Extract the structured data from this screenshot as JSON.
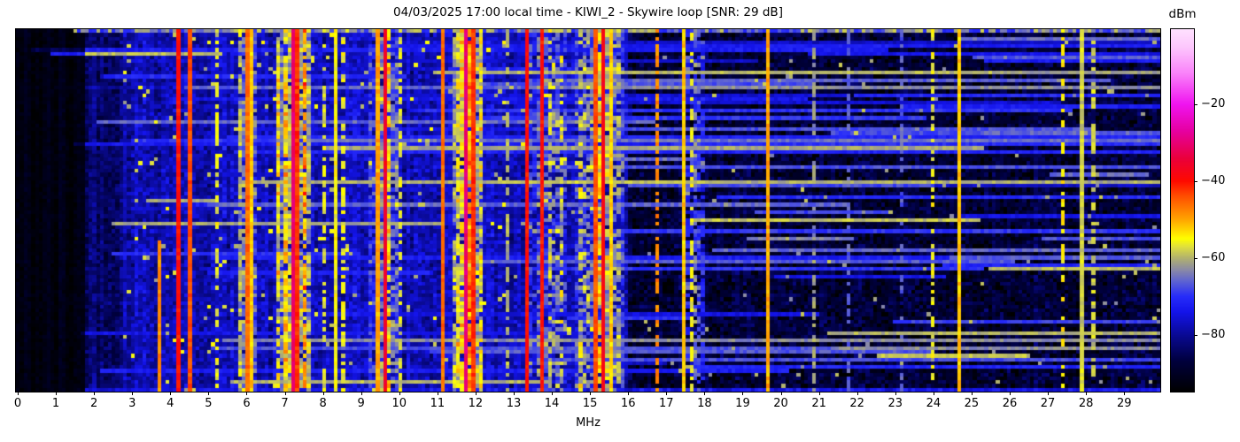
{
  "header": {
    "title": "04/03/2025 17:00 local time - KIWI_2 - Skywire loop [SNR: 29 dB]"
  },
  "chart_data": {
    "type": "heatmap",
    "title": "04/03/2025 17:00 local time - KIWI_2 - Skywire loop [SNR: 29 dB]",
    "xlabel": "MHz",
    "colorbar_label": "dBm",
    "x_range_mhz": [
      0,
      29.9
    ],
    "x_ticks": [
      0,
      1,
      2,
      3,
      4,
      5,
      6,
      7,
      8,
      9,
      10,
      11,
      12,
      13,
      14,
      15,
      16,
      17,
      18,
      19,
      20,
      21,
      22,
      23,
      24,
      25,
      26,
      27,
      28,
      29
    ],
    "colorbar_ticks": [
      -20,
      -40,
      -60,
      -80
    ],
    "colorbar_tick_labels": [
      "−20",
      "−40",
      "−60",
      "−80"
    ],
    "value_range_dbm": [
      -95,
      0
    ],
    "rows": 96,
    "cols": 299,
    "grid": false,
    "colormap_stops": [
      [
        -95,
        0,
        0,
        0
      ],
      [
        -87,
        0,
        0,
        60
      ],
      [
        -80,
        10,
        10,
        150
      ],
      [
        -74,
        20,
        20,
        235
      ],
      [
        -70,
        40,
        45,
        250
      ],
      [
        -66,
        95,
        100,
        210
      ],
      [
        -63,
        140,
        140,
        165
      ],
      [
        -60,
        178,
        178,
        110
      ],
      [
        -57,
        225,
        225,
        60
      ],
      [
        -55,
        255,
        255,
        0
      ],
      [
        -50,
        255,
        165,
        0
      ],
      [
        -44,
        255,
        80,
        0
      ],
      [
        -40,
        255,
        10,
        0
      ],
      [
        -34,
        235,
        0,
        60
      ],
      [
        -27,
        230,
        0,
        160
      ],
      [
        -20,
        240,
        20,
        240
      ],
      [
        -12,
        250,
        130,
        250
      ],
      [
        -5,
        253,
        200,
        253
      ],
      [
        0,
        255,
        228,
        255
      ]
    ],
    "background_profile_dbm": [
      [
        0.0,
        1.8,
        -93
      ],
      [
        1.8,
        2.8,
        -83
      ],
      [
        2.8,
        16.0,
        -78
      ],
      [
        16.0,
        29.9,
        -87
      ]
    ],
    "broadcast_bands": [
      {
        "f0": 5.75,
        "f1": 6.3,
        "level": -60,
        "var": 7,
        "stripe": 6,
        "gap": 0.15
      },
      {
        "f0": 6.85,
        "f1": 7.65,
        "level": -56,
        "var": 8,
        "stripe": 7,
        "gap": 0.12
      },
      {
        "f0": 9.25,
        "f1": 10.0,
        "level": -60,
        "var": 8,
        "stripe": 7,
        "gap": 0.2
      },
      {
        "f0": 11.45,
        "f1": 12.2,
        "level": -54,
        "var": 8,
        "stripe": 7,
        "gap": 0.12
      },
      {
        "f0": 13.45,
        "f1": 13.85,
        "level": -62,
        "var": 8,
        "stripe": 6,
        "gap": 0.3
      },
      {
        "f0": 13.9,
        "f1": 14.35,
        "level": -60,
        "var": 9,
        "stripe": 7,
        "gap": 0.35
      },
      {
        "f0": 14.55,
        "f1": 15.05,
        "level": -62,
        "var": 8,
        "stripe": 6,
        "gap": 0.3
      },
      {
        "f0": 15.05,
        "f1": 15.5,
        "level": -55,
        "var": 8,
        "stripe": 6,
        "gap": 0.15
      },
      {
        "f0": 15.5,
        "f1": 15.85,
        "level": -60,
        "var": 7,
        "stripe": 6,
        "gap": 0.3
      },
      {
        "f0": 17.4,
        "f1": 17.95,
        "level": -70,
        "var": 8,
        "stripe": 6,
        "gap": 0.4
      }
    ],
    "carrier_lines": [
      {
        "f": 3.75,
        "level": -48,
        "dash": 0,
        "r0": 0.58,
        "r1": 1.0
      },
      {
        "f": 4.2,
        "level": -40,
        "dash": 0
      },
      {
        "f": 4.57,
        "level": -44,
        "dash": 0
      },
      {
        "f": 5.2,
        "level": -56,
        "dash": 1
      },
      {
        "f": 6.0,
        "level": -46,
        "dash": 0
      },
      {
        "f": 6.17,
        "level": -52,
        "dash": 0
      },
      {
        "f": 7.21,
        "level": -31,
        "dash": 0
      },
      {
        "f": 7.35,
        "level": -42,
        "dash": 0
      },
      {
        "f": 8.0,
        "level": -57,
        "dash": 1
      },
      {
        "f": 8.33,
        "level": -55,
        "dash": 0
      },
      {
        "f": 8.55,
        "level": -56,
        "dash": 1
      },
      {
        "f": 9.4,
        "level": -50,
        "dash": 0
      },
      {
        "f": 9.65,
        "level": -36,
        "dash": 0
      },
      {
        "f": 10.0,
        "level": -57,
        "dash": 1
      },
      {
        "f": 11.15,
        "level": -46,
        "dash": 0
      },
      {
        "f": 11.7,
        "level": -30,
        "dash": 0
      },
      {
        "f": 11.9,
        "level": -42,
        "dash": 0
      },
      {
        "f": 12.8,
        "level": -60,
        "dash": 1
      },
      {
        "f": 13.3,
        "level": -40,
        "dash": 0
      },
      {
        "f": 13.7,
        "level": -40,
        "dash": 0
      },
      {
        "f": 15.1,
        "level": -44,
        "dash": 0
      },
      {
        "f": 15.3,
        "level": -38,
        "dash": 0
      },
      {
        "f": 15.55,
        "level": -52,
        "dash": 0
      },
      {
        "f": 16.75,
        "level": -48,
        "dash": 1
      },
      {
        "f": 17.48,
        "level": -52,
        "dash": 0
      },
      {
        "f": 17.62,
        "level": -56,
        "dash": 1
      },
      {
        "f": 19.6,
        "level": -50,
        "dash": 0
      },
      {
        "f": 20.85,
        "level": -62,
        "dash": 1
      },
      {
        "f": 21.7,
        "level": -66,
        "dash": 1
      },
      {
        "f": 23.1,
        "level": -66,
        "dash": 1
      },
      {
        "f": 23.9,
        "level": -56,
        "dash": 1
      },
      {
        "f": 24.65,
        "level": -52,
        "dash": 0
      },
      {
        "f": 27.3,
        "level": -54,
        "dash": 1
      },
      {
        "f": 27.8,
        "level": -58,
        "dash": 0
      },
      {
        "f": 28.1,
        "level": -58,
        "dash": 1
      }
    ],
    "horizontal_streaks": [
      {
        "row": 0.16,
        "f0": 14.5,
        "f1": 29.9,
        "level": -63
      },
      {
        "row": 0.16,
        "f0": 0.0,
        "f1": 6.0,
        "level": -80
      },
      {
        "row": 0.43,
        "f0": 16.0,
        "f1": 24.0,
        "level": -68
      },
      {
        "row": 0.885,
        "f0": 21.3,
        "f1": 29.9,
        "level": -63
      },
      {
        "row": 0.885,
        "f0": 6.0,
        "f1": 12.0,
        "level": -70
      },
      {
        "row": 0.62,
        "f0": 2.5,
        "f1": 9.0,
        "level": -70
      },
      {
        "row": 0.3,
        "f0": 3.0,
        "f1": 16.0,
        "level": -70
      }
    ]
  },
  "colors": {
    "figure_background": "#ffffff",
    "axis": "#000000",
    "text": "#000000"
  }
}
